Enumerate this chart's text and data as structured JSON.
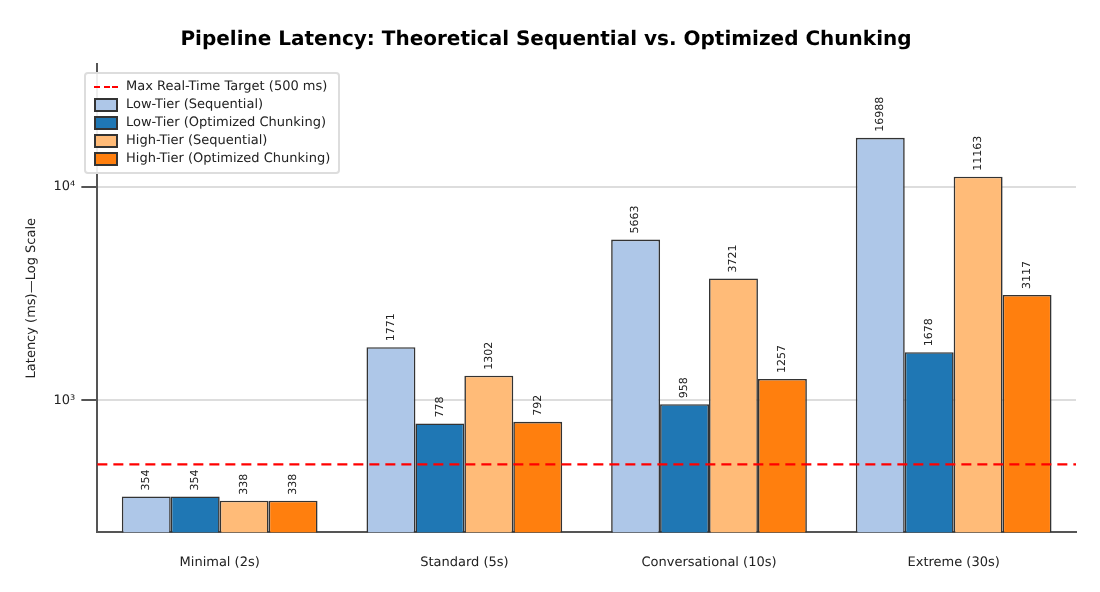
{
  "chart_data": {
    "type": "bar",
    "title": "Pipeline Latency: Theoretical Sequential vs. Optimized Chunking",
    "ylabel": "Latency (ms)—Log Scale",
    "categories": [
      "Minimal (2s)",
      "Standard (5s)",
      "Conversational (10s)",
      "Extreme (30s)"
    ],
    "series": [
      {
        "name": "Low-Tier (Sequential)",
        "color": "#aec7e8",
        "values": [
          354,
          1771,
          5663,
          16988
        ]
      },
      {
        "name": "Low-Tier (Optimized Chunking)",
        "color": "#1f77b4",
        "values": [
          354,
          778,
          958,
          1678
        ]
      },
      {
        "name": "High-Tier (Sequential)",
        "color": "#ffbb78",
        "values": [
          338,
          1302,
          3721,
          11163
        ]
      },
      {
        "name": "High-Tier (Optimized Chunking)",
        "color": "#ff7f0e",
        "values": [
          338,
          792,
          1257,
          3117
        ]
      }
    ],
    "log": "y",
    "ylim": [
      240,
      37700
    ],
    "yticks": [
      {
        "value": 1000,
        "label": "10³"
      },
      {
        "value": 10000,
        "label": "10⁴"
      }
    ],
    "grid": "y",
    "legend": "top left",
    "data_labels": true,
    "ref_lines": [
      {
        "axis": "y",
        "value": 500,
        "label": "Max Real-Time Target (500 ms)",
        "color": "#ff0000",
        "line_style": "dashed"
      }
    ]
  }
}
